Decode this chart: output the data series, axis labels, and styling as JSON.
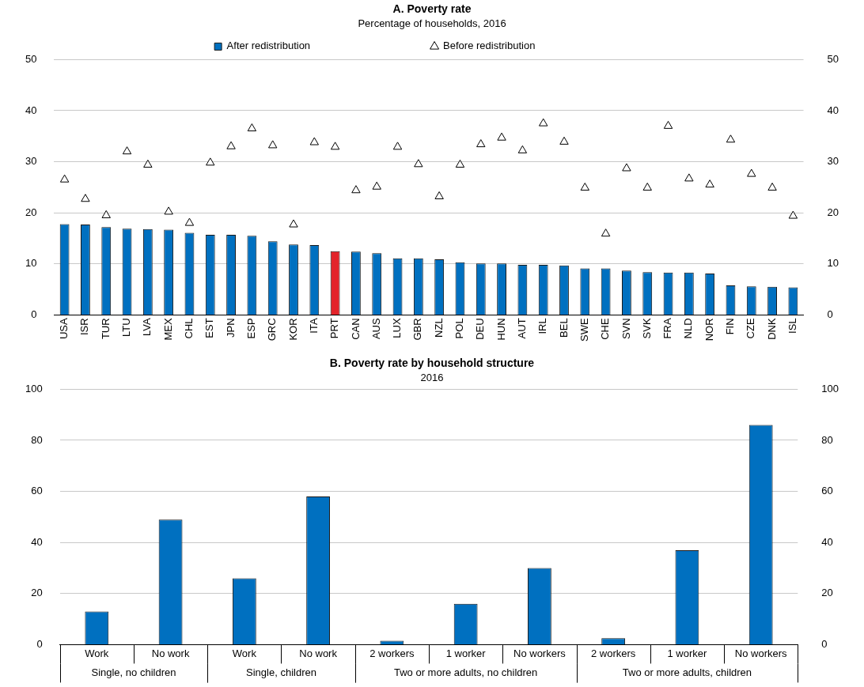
{
  "chart_data": [
    {
      "type": "bar",
      "title": "A. Poverty rate",
      "subtitle": "Percentage of households, 2016",
      "categories": [
        "USA",
        "ISR",
        "TUR",
        "LTU",
        "LVA",
        "MEX",
        "CHL",
        "EST",
        "JPN",
        "ESP",
        "GRC",
        "KOR",
        "ITA",
        "PRT",
        "CAN",
        "AUS",
        "LUX",
        "GBR",
        "NZL",
        "POL",
        "DEU",
        "HUN",
        "AUT",
        "IRL",
        "BEL",
        "SWE",
        "CHE",
        "SVN",
        "SVK",
        "FRA",
        "NLD",
        "NOR",
        "FIN",
        "CZE",
        "DNK",
        "ISL"
      ],
      "series": [
        {
          "name": "After redistribution",
          "color": "#0070c0",
          "colors": [
            "#0070c0",
            "#0070c0",
            "#0070c0",
            "#0070c0",
            "#0070c0",
            "#0070c0",
            "#0070c0",
            "#0070c0",
            "#0070c0",
            "#0070c0",
            "#0070c0",
            "#0070c0",
            "#0070c0",
            "#e3242b",
            "#0070c0",
            "#0070c0",
            "#0070c0",
            "#0070c0",
            "#0070c0",
            "#0070c0",
            "#0070c0",
            "#0070c0",
            "#0070c0",
            "#0070c0",
            "#0070c0",
            "#0070c0",
            "#0070c0",
            "#0070c0",
            "#0070c0",
            "#0070c0",
            "#0070c0",
            "#0070c0",
            "#0070c0",
            "#0070c0",
            "#0070c0",
            "#0070c0"
          ],
          "values": [
            17.8,
            17.7,
            17.2,
            16.9,
            16.8,
            16.7,
            16.1,
            15.7,
            15.7,
            15.5,
            14.4,
            13.8,
            13.7,
            12.5,
            12.4,
            12.1,
            11.1,
            11.1,
            10.9,
            10.3,
            10.1,
            10.1,
            9.8,
            9.8,
            9.7,
            9.1,
            9.1,
            8.7,
            8.4,
            8.3,
            8.3,
            8.1,
            5.8,
            5.6,
            5.5,
            5.4
          ]
        },
        {
          "name": "Before redistribution",
          "type": "scatter",
          "marker": "triangle",
          "color": "#000000",
          "x": [
            "USA",
            "ISR",
            "TUR",
            "LTU",
            "LVA",
            "MEX",
            "CHL",
            "EST",
            "JPN",
            "ESP",
            "GRC",
            "KOR",
            "ITA",
            "PRT",
            "CAN",
            "AUS",
            "LUX",
            "GBR",
            "NZL",
            "POL",
            "DEU",
            "HUN",
            "AUT",
            "IRL",
            "BEL",
            "SWE",
            "CHE",
            "SVN",
            "SVK",
            "FRA",
            "NLD",
            "NOR",
            "FIN",
            "CZE",
            "DNK",
            "ISL"
          ],
          "values": [
            26.5,
            22.7,
            19.5,
            32,
            29.4,
            20.2,
            18,
            29.8,
            33,
            36.5,
            33.2,
            17.7,
            33.8,
            32.9,
            24.4,
            25.1,
            32.9,
            29.5,
            23.2,
            29.4,
            33.4,
            34.7,
            32.2,
            37.5,
            33.9,
            24.9,
            15.9,
            28.7,
            24.9,
            37,
            26.7,
            25.5,
            34.3,
            27.6,
            24.9,
            19.4
          ]
        }
      ],
      "ylim": [
        0,
        50
      ],
      "yticks": [
        0,
        10,
        20,
        30,
        40,
        50
      ],
      "y2lim": [
        0,
        50
      ],
      "y2ticks": [
        0,
        10,
        20,
        30,
        40,
        50
      ],
      "grid": "y",
      "legend": "top"
    },
    {
      "type": "bar",
      "title": "B. Poverty rate by household structure",
      "subtitle": "2016",
      "categories": [
        "Work",
        "No work",
        "Work",
        "No work",
        "2 workers",
        "1 worker",
        "No workers",
        "2 workers",
        "1 worker",
        "No workers"
      ],
      "series": [
        {
          "color": "#0070c0",
          "values": [
            13,
            49,
            26,
            58,
            1.5,
            16,
            30,
            2.5,
            37,
            86
          ]
        }
      ],
      "annotations": [
        "Single, no children",
        "Single, children",
        "Two or more adults, no children",
        "Two or more adults, children"
      ],
      "ylim": [
        0,
        100
      ],
      "yticks": [
        0,
        20,
        40,
        60,
        80,
        100
      ],
      "y2lim": [
        0,
        100
      ],
      "y2ticks": [
        0,
        20,
        40,
        60,
        80,
        100
      ],
      "grid": "y"
    }
  ]
}
